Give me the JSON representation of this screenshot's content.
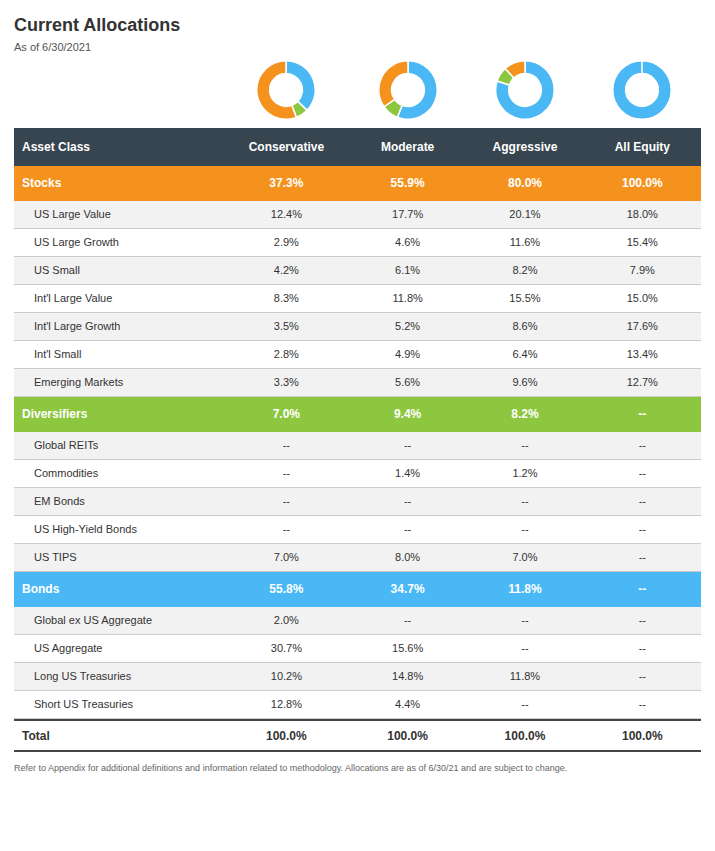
{
  "title": "Current Allocations",
  "subtitle": "As of 6/30/2021",
  "annotations": [
    "Refer to Appendix for additional definitions and information related to methodology. Allocations are as of 6/30/21 and are subject to change."
  ],
  "table": {
    "columns": [
      "Asset Class",
      "Conservative",
      "Moderate",
      "Aggressive",
      "All Equity"
    ],
    "rows": [
      {
        "label": "Stocks",
        "type": "category",
        "values": [
          "37.3%",
          "55.9%",
          "80.0%",
          "100.0%"
        ],
        "color": "#f5921e"
      },
      {
        "label": "US Large Value",
        "type": "sub",
        "values": [
          "12.4%",
          "17.7%",
          "20.1%",
          "18.0%"
        ]
      },
      {
        "label": "US Large Growth",
        "type": "sub",
        "values": [
          "2.9%",
          "4.6%",
          "11.6%",
          "15.4%"
        ]
      },
      {
        "label": "US Small",
        "type": "sub",
        "values": [
          "4.2%",
          "6.1%",
          "8.2%",
          "7.9%"
        ]
      },
      {
        "label": "Int'l Large Value",
        "type": "sub",
        "values": [
          "8.3%",
          "11.8%",
          "15.5%",
          "15.0%"
        ]
      },
      {
        "label": "Int'l Large Growth",
        "type": "sub",
        "values": [
          "3.5%",
          "5.2%",
          "8.6%",
          "17.6%"
        ]
      },
      {
        "label": "Int'l Small",
        "type": "sub",
        "values": [
          "2.8%",
          "4.9%",
          "6.4%",
          "13.4%"
        ]
      },
      {
        "label": "Emerging Markets",
        "type": "sub",
        "values": [
          "3.3%",
          "5.6%",
          "9.6%",
          "12.7%"
        ]
      },
      {
        "label": "Diversifiers",
        "type": "category",
        "values": [
          "7.0%",
          "9.4%",
          "8.2%",
          "--"
        ],
        "color": "#8dc63f"
      },
      {
        "label": "Global REITs",
        "type": "sub",
        "values": [
          "--",
          "--",
          "--",
          "--"
        ]
      },
      {
        "label": "Commodities",
        "type": "sub",
        "values": [
          "--",
          "1.4%",
          "1.2%",
          "--"
        ]
      },
      {
        "label": "EM Bonds",
        "type": "sub",
        "values": [
          "--",
          "--",
          "--",
          "--"
        ]
      },
      {
        "label": "US High-Yield Bonds",
        "type": "sub",
        "values": [
          "--",
          "--",
          "--",
          "--"
        ]
      },
      {
        "label": "US TIPS",
        "type": "sub",
        "values": [
          "7.0%",
          "8.0%",
          "7.0%",
          "--"
        ]
      },
      {
        "label": "Bonds",
        "type": "category",
        "values": [
          "55.8%",
          "34.7%",
          "11.8%",
          "--"
        ],
        "color": "#4ab8f5"
      },
      {
        "label": "Global ex US Aggregate",
        "type": "sub",
        "values": [
          "2.0%",
          "--",
          "--",
          "--"
        ]
      },
      {
        "label": "US Aggregate",
        "type": "sub",
        "values": [
          "30.7%",
          "15.6%",
          "--",
          "--"
        ]
      },
      {
        "label": "Long US Treasuries",
        "type": "sub",
        "values": [
          "10.2%",
          "14.8%",
          "11.8%",
          "--"
        ]
      },
      {
        "label": "Short US Treasuries",
        "type": "sub",
        "values": [
          "12.8%",
          "4.4%",
          "--",
          "--"
        ]
      },
      {
        "label": "Total",
        "type": "total",
        "values": [
          "100.0%",
          "100.0%",
          "100.0%",
          "100.0%"
        ]
      }
    ]
  },
  "chart_data": [
    {
      "type": "doughnut",
      "values": [
        37.3,
        7.0,
        55.8
      ],
      "colors": [
        "#4ab8f5",
        "#8dc63f",
        "#f5921e"
      ]
    },
    {
      "type": "doughnut",
      "values": [
        55.9,
        9.4,
        34.7
      ],
      "colors": [
        "#4ab8f5",
        "#8dc63f",
        "#f5921e"
      ]
    },
    {
      "type": "doughnut",
      "values": [
        80.0,
        8.2,
        11.8
      ],
      "colors": [
        "#4ab8f5",
        "#8dc63f",
        "#f5921e"
      ]
    },
    {
      "type": "doughnut",
      "values": [
        100.0
      ],
      "colors": [
        "#4ab8f5"
      ]
    }
  ]
}
